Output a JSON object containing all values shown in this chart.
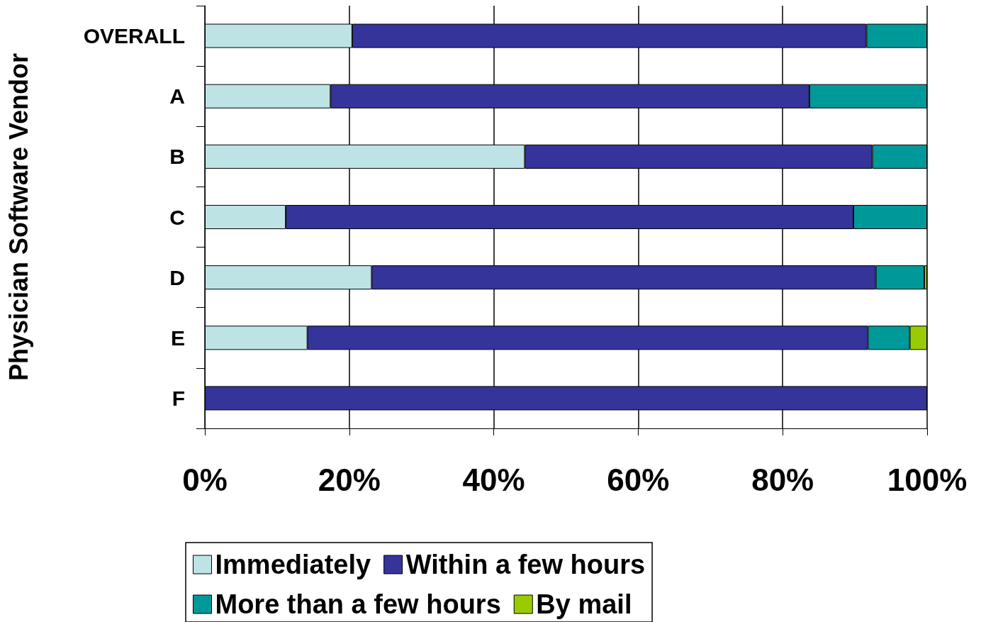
{
  "chart_data": {
    "type": "bar",
    "orientation": "horizontal",
    "stacked": true,
    "ylabel": "Physician Software Vendor",
    "categories": [
      "OVERALL",
      "A",
      "B",
      "C",
      "D",
      "E",
      "F"
    ],
    "series": [
      {
        "name": "Immediately",
        "color": "#bde3e5",
        "values": [
          20.4,
          17.4,
          44.3,
          11.2,
          23.1,
          14.2,
          0
        ]
      },
      {
        "name": "Within a few hours",
        "color": "#35349a",
        "values": [
          71.2,
          66.3,
          48.1,
          78.6,
          69.8,
          77.6,
          100
        ]
      },
      {
        "name": "More than a few hours",
        "color": "#009999",
        "values": [
          8.4,
          16.3,
          7.6,
          10.2,
          6.7,
          5.8,
          0
        ]
      },
      {
        "name": "By mail",
        "color": "#99cc00",
        "values": [
          0,
          0,
          0,
          0,
          0.4,
          2.4,
          0
        ]
      }
    ],
    "xlim": [
      0,
      100
    ],
    "xticks": [
      {
        "value": 0,
        "label": "0%"
      },
      {
        "value": 20,
        "label": "20%"
      },
      {
        "value": 40,
        "label": "40%"
      },
      {
        "value": 60,
        "label": "60%"
      },
      {
        "value": 80,
        "label": "80%"
      },
      {
        "value": 100,
        "label": "100%"
      }
    ],
    "grid": "x",
    "legend": "bottom"
  }
}
